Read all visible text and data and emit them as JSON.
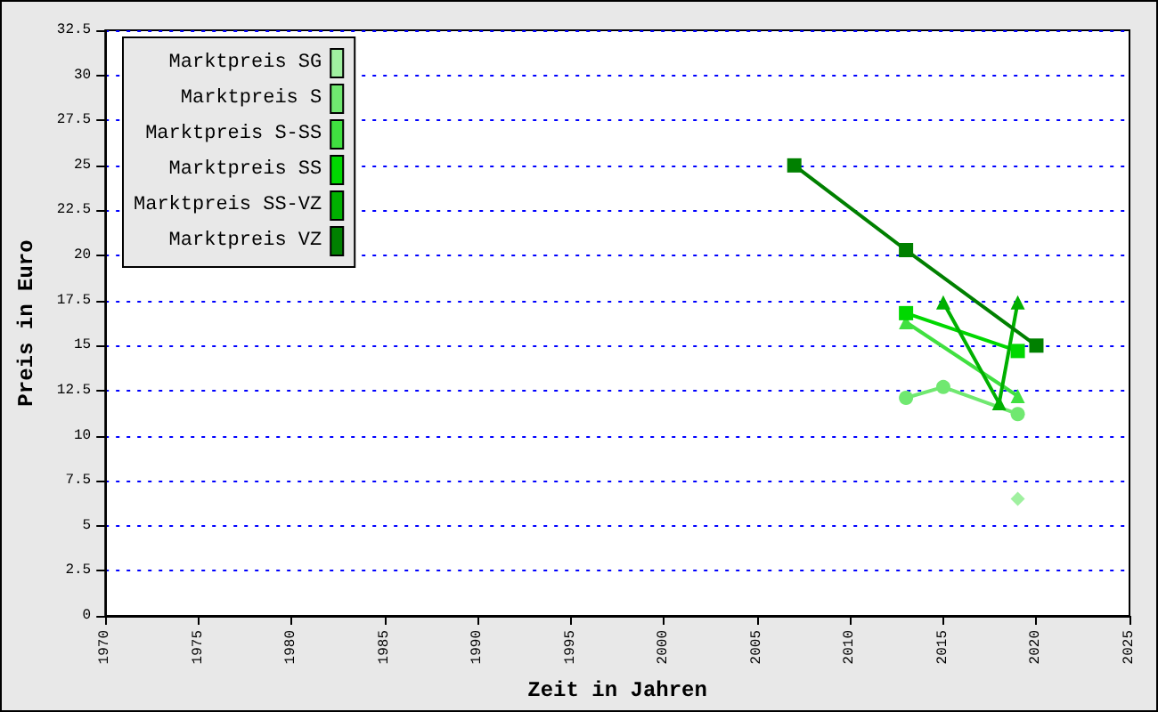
{
  "chart_data": {
    "type": "line",
    "xlabel": "Zeit in Jahren",
    "ylabel": "Preis in Euro",
    "xlim": [
      1970,
      2025
    ],
    "xticks": [
      1970,
      1975,
      1980,
      1985,
      1990,
      1995,
      2000,
      2005,
      2010,
      2015,
      2020,
      2025
    ],
    "ylim": [
      0,
      32.5
    ],
    "yticks": [
      0,
      2.5,
      5,
      7.5,
      10,
      12.5,
      15,
      17.5,
      20,
      22.5,
      25,
      27.5,
      30,
      32.5
    ],
    "grid": "y",
    "legend": "top left",
    "series": [
      {
        "name": "Marktpreis SG",
        "color": "#a0f0a0",
        "marker": "diamond",
        "x": [
          2019
        ],
        "values": [
          6.5
        ]
      },
      {
        "name": "Marktpreis S",
        "color": "#70e870",
        "marker": "circle",
        "x": [
          2013,
          2015,
          2019
        ],
        "values": [
          12.1,
          12.7,
          11.2
        ]
      },
      {
        "name": "Marktpreis S-SS",
        "color": "#40e040",
        "marker": "triangle",
        "x": [
          2013,
          2019
        ],
        "values": [
          16.3,
          12.2
        ]
      },
      {
        "name": "Marktpreis SS",
        "color": "#00d800",
        "marker": "square",
        "x": [
          2013,
          2019
        ],
        "values": [
          16.8,
          14.7
        ]
      },
      {
        "name": "Marktpreis SS-VZ",
        "color": "#00b000",
        "marker": "triangle",
        "x": [
          2015,
          2018,
          2019
        ],
        "values": [
          17.4,
          11.8,
          17.4
        ]
      },
      {
        "name": "Marktpreis VZ",
        "color": "#008000",
        "marker": "square",
        "x": [
          2007,
          2013,
          2020
        ],
        "values": [
          25.0,
          20.3,
          15.0
        ]
      }
    ]
  }
}
